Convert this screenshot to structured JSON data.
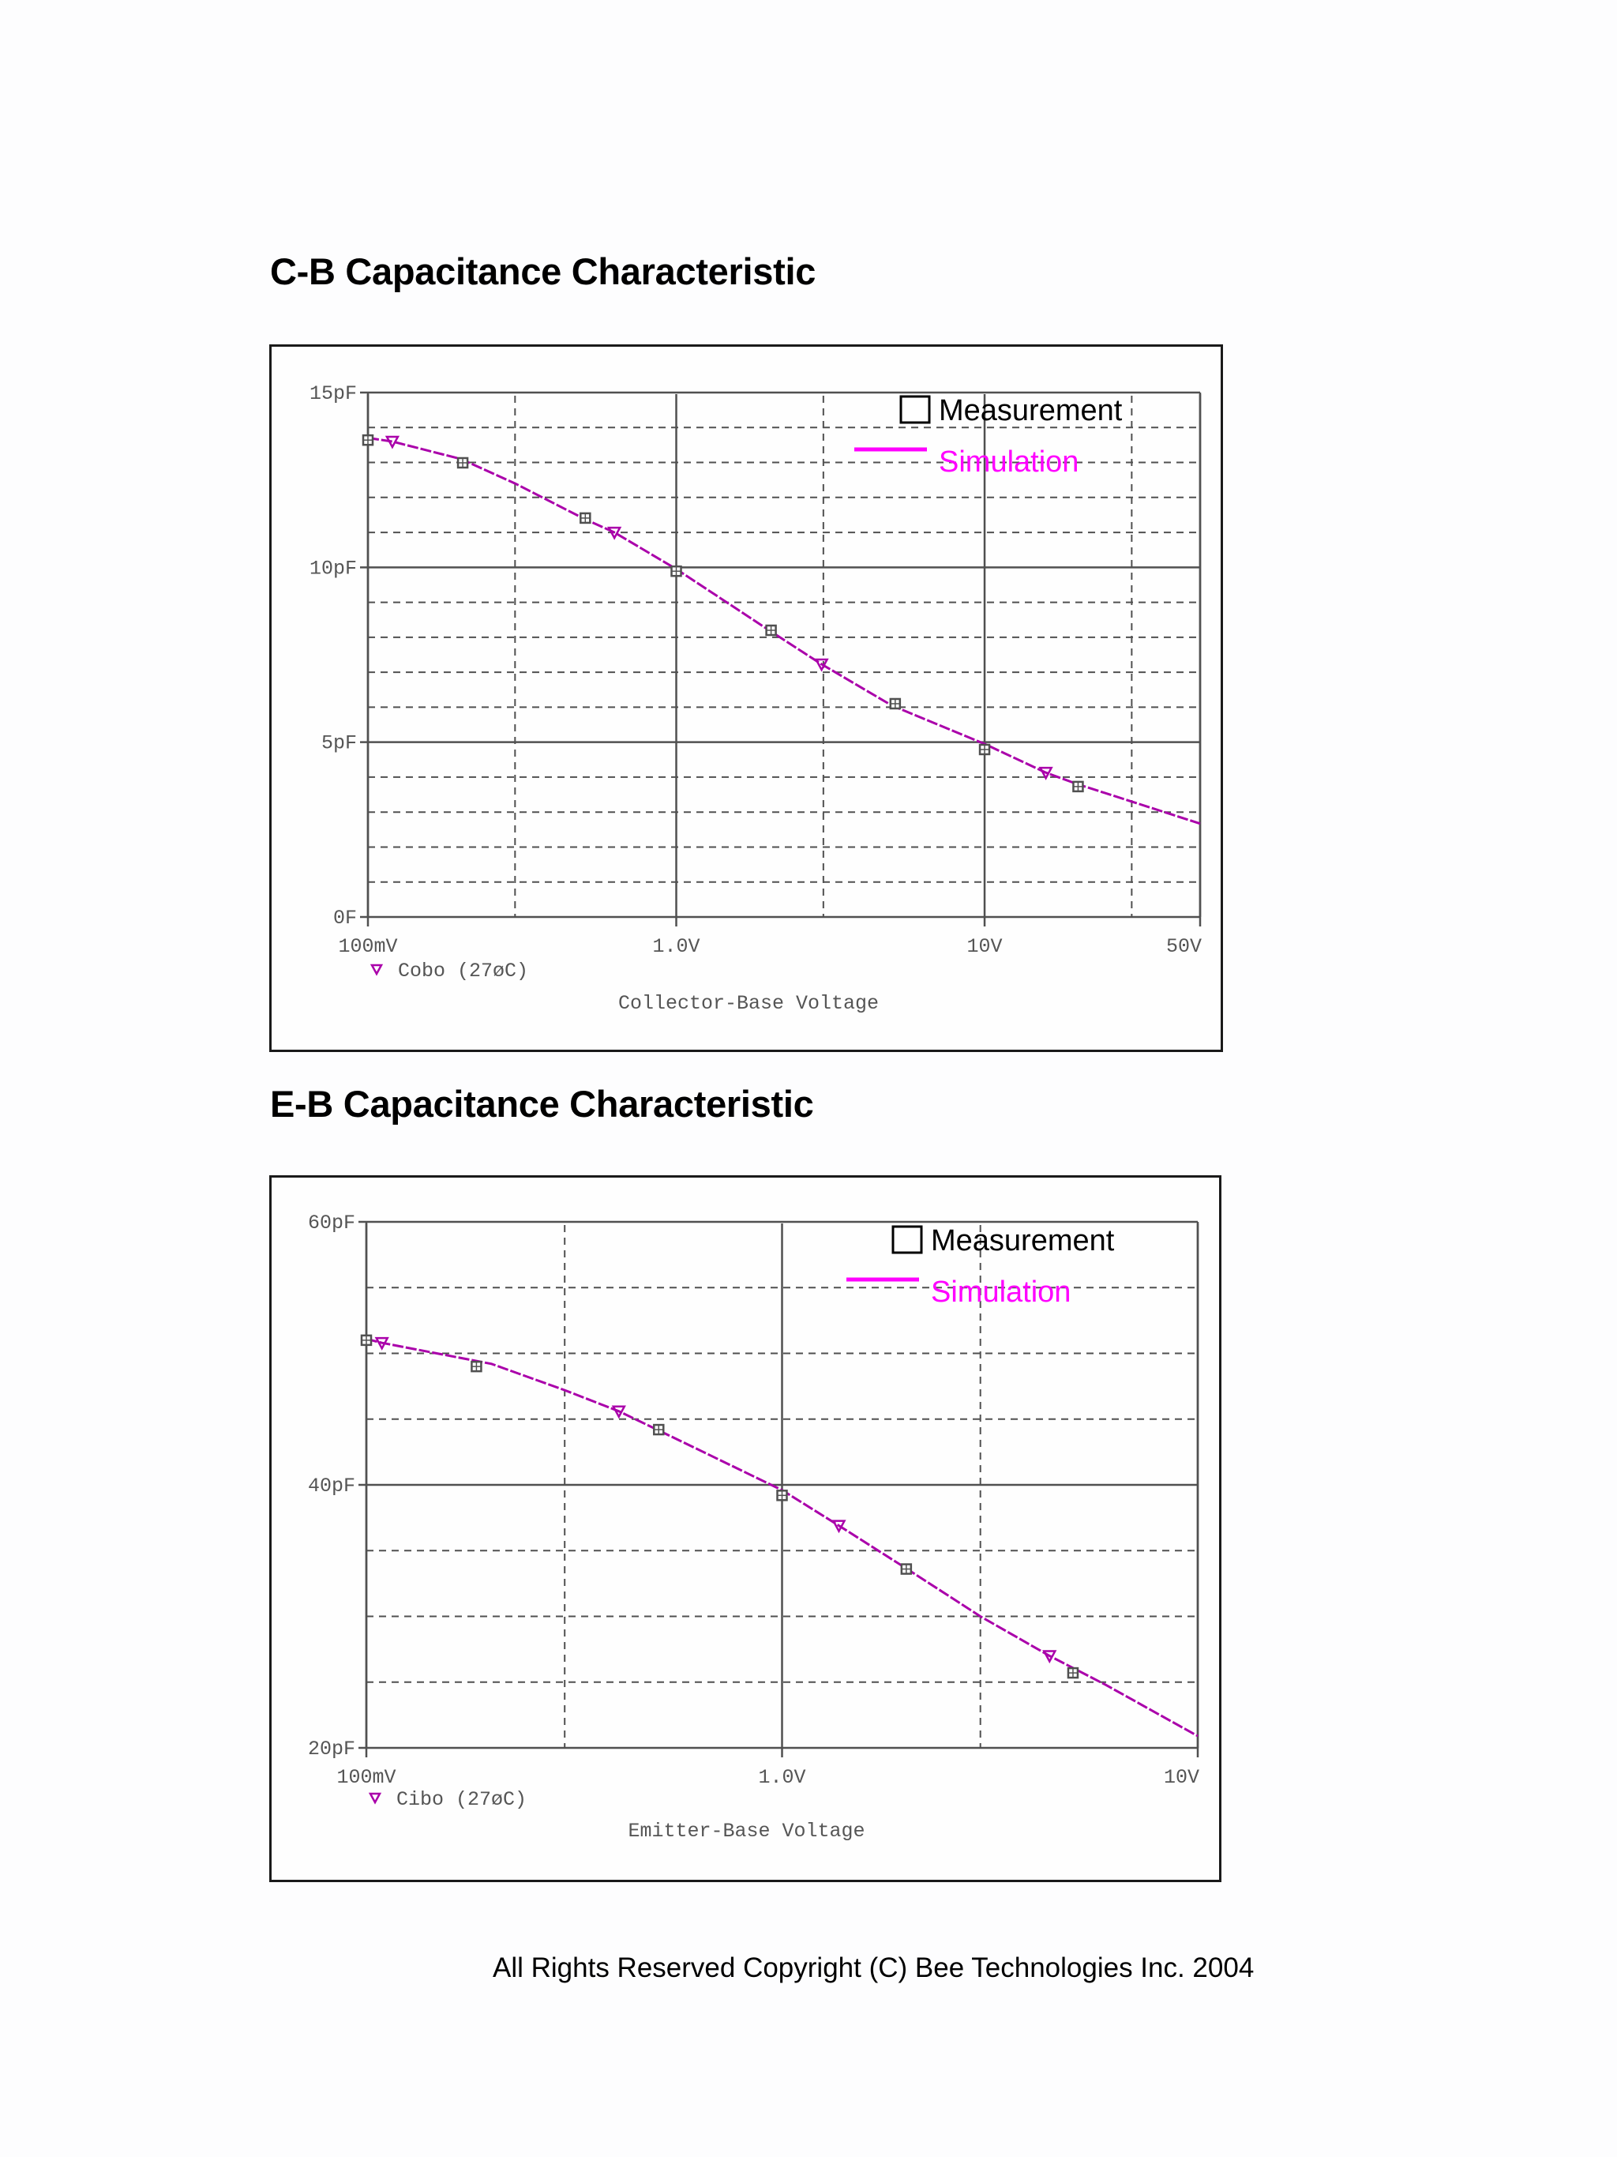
{
  "sections": [
    {
      "title": "C-B Capacitance Characteristic"
    },
    {
      "title": "E-B Capacitance Characteristic"
    }
  ],
  "footer": {
    "text": "All Rights Reserved Copyright (C) Bee Technologies Inc. 2004"
  },
  "legend": {
    "measurement_label": "Measurement",
    "simulation_label": "Simulation",
    "measurement_color": "#000000",
    "simulation_color": "#ff00ff"
  },
  "colors": {
    "grid": "#505050",
    "curve": "#aa00aa",
    "marker": "#505050",
    "triangle": "#aa00aa"
  },
  "chart_data": [
    {
      "type": "line",
      "title": "C-B Capacitance Characteristic",
      "xlabel": "Collector-Base Voltage",
      "ylabel": "",
      "xscale": "log",
      "xlim": [
        0.1,
        50
      ],
      "ylim": [
        0,
        15
      ],
      "x_tick_labels": [
        "100mV",
        "1.0V",
        "10V",
        "50V"
      ],
      "x_ticks": [
        0.1,
        1.0,
        10,
        50
      ],
      "y_tick_labels": [
        "0F",
        "5pF",
        "10pF",
        "15pF"
      ],
      "y_ticks": [
        0,
        5,
        10,
        15
      ],
      "trace_label": "Cobo (27°C)",
      "trace_label_display": "Cobo (27øC)",
      "grid": true,
      "legend_position": "upper right",
      "series": [
        {
          "name": "Measurement",
          "marker": "square",
          "x": [
            0.1,
            0.203,
            0.507,
            1.0,
            2.03,
            5.13,
            10,
            20.1
          ],
          "y": [
            13.64,
            12.99,
            11.41,
            9.89,
            8.2,
            6.1,
            4.79,
            3.73
          ]
        },
        {
          "name": "Simulation",
          "marker": "triangle-down",
          "x": [
            0.1,
            0.12,
            0.2,
            0.3,
            0.5,
            0.63,
            1.0,
            2.0,
            2.96,
            5.0,
            10,
            15.8,
            20,
            30,
            50
          ],
          "y": [
            13.7,
            13.6,
            13.1,
            12.4,
            11.4,
            11.0,
            9.95,
            8.2,
            7.23,
            6.05,
            4.95,
            4.13,
            3.8,
            3.3,
            2.67
          ],
          "marker_x": [
            0.12,
            0.63,
            2.96,
            15.8
          ],
          "marker_y": [
            13.6,
            11.0,
            7.23,
            4.13
          ]
        }
      ]
    },
    {
      "type": "line",
      "title": "E-B Capacitance Characteristic",
      "xlabel": "Emitter-Base Voltage",
      "ylabel": "",
      "xscale": "log",
      "xlim": [
        0.1,
        10
      ],
      "ylim": [
        20,
        60
      ],
      "x_tick_labels": [
        "100mV",
        "1.0V",
        "10V"
      ],
      "x_ticks": [
        0.1,
        1.0,
        10
      ],
      "y_tick_labels": [
        "20pF",
        "40pF",
        "60pF"
      ],
      "y_ticks": [
        20,
        40,
        60
      ],
      "trace_label": "Cibo (27°C)",
      "trace_label_display": "Cibo (27øC)",
      "grid": true,
      "legend_position": "upper right",
      "series": [
        {
          "name": "Measurement",
          "marker": "square",
          "x": [
            0.1,
            0.184,
            0.505,
            1.0,
            1.99,
            5.01
          ],
          "y": [
            51.0,
            49.0,
            44.2,
            39.2,
            33.6,
            25.7
          ]
        },
        {
          "name": "Simulation",
          "marker": "triangle-down",
          "x": [
            0.1,
            0.109,
            0.2,
            0.3,
            0.405,
            0.6,
            1.0,
            1.37,
            2.0,
            3.0,
            4.4,
            6.0,
            10
          ],
          "y": [
            51.1,
            50.8,
            49.2,
            47.2,
            45.6,
            43.0,
            39.6,
            36.9,
            33.6,
            30.0,
            27.0,
            24.8,
            20.9
          ],
          "marker_x": [
            0.109,
            0.405,
            1.37,
            4.4
          ],
          "marker_y": [
            50.8,
            45.6,
            36.9,
            27.0
          ]
        }
      ]
    }
  ]
}
